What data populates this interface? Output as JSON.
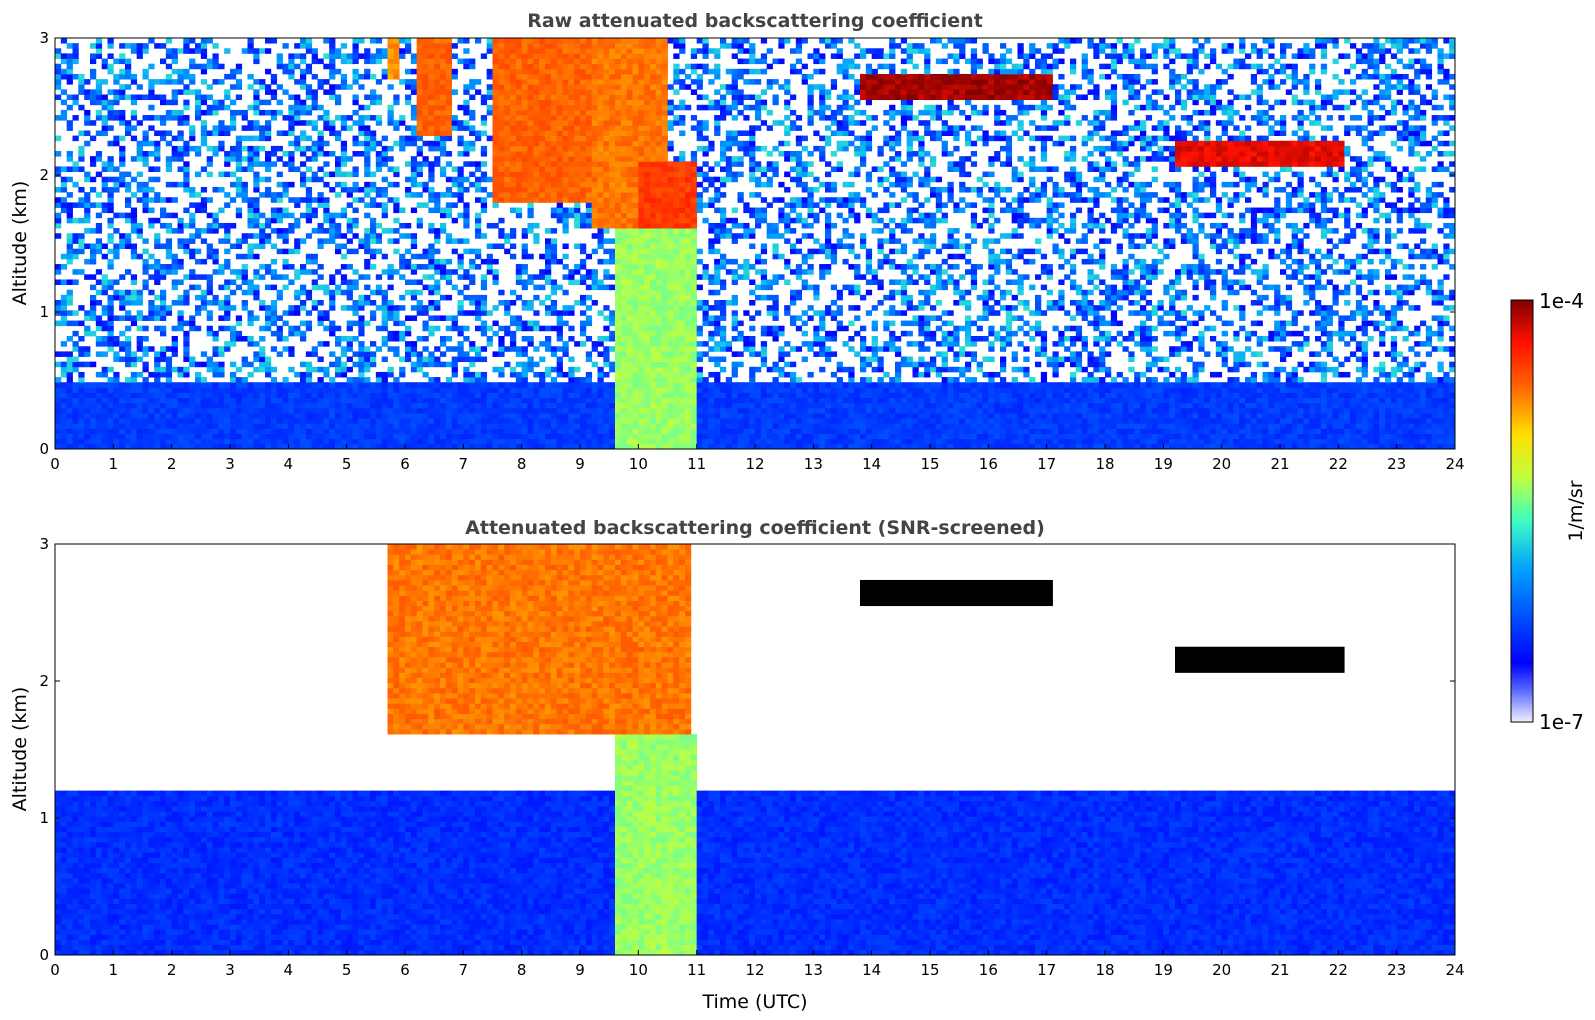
{
  "chart_data": [
    {
      "type": "heatmap",
      "title": "Raw attenuated backscattering coefficient",
      "xlabel": "",
      "ylabel": "Altitude (km)",
      "xlim": [
        0,
        24
      ],
      "ylim": [
        0,
        3
      ],
      "x_ticks": [
        "0",
        "1",
        "2",
        "3",
        "4",
        "5",
        "6",
        "7",
        "8",
        "9",
        "10",
        "11",
        "12",
        "13",
        "14",
        "15",
        "16",
        "17",
        "18",
        "19",
        "20",
        "21",
        "22",
        "23",
        "24"
      ],
      "y_ticks": [
        "0",
        "1",
        "2",
        "3"
      ],
      "screened": false,
      "features": [
        {
          "kind": "boundary-layer aerosol",
          "x": [
            0,
            24
          ],
          "y": [
            0,
            0.5
          ],
          "level": 0.22
        },
        {
          "kind": "falling precipitation streak",
          "x": [
            5.7,
            5.85
          ],
          "y": [
            2.7,
            3.0
          ],
          "level": 0.75
        },
        {
          "kind": "falling precipitation streak",
          "x": [
            6.2,
            6.8
          ],
          "y": [
            2.3,
            3.0
          ],
          "level": 0.8
        },
        {
          "kind": "falling precipitation streak",
          "x": [
            7.5,
            9.2
          ],
          "y": [
            1.8,
            3.0
          ],
          "level": 0.8
        },
        {
          "kind": "falling precipitation streak",
          "x": [
            9.2,
            10.5
          ],
          "y": [
            1.6,
            3.0
          ],
          "level": 0.78
        },
        {
          "kind": "precipitation shaft",
          "x": [
            9.6,
            11.0
          ],
          "y": [
            0,
            1.6
          ],
          "level": 0.55
        },
        {
          "kind": "cloud layer",
          "x": [
            10.0,
            11.0
          ],
          "y": [
            1.6,
            2.1
          ],
          "level": 0.85
        },
        {
          "kind": "cloud layer",
          "x": [
            13.8,
            17.1
          ],
          "y": [
            2.55,
            2.75
          ],
          "level": 0.97
        },
        {
          "kind": "cloud layer",
          "x": [
            19.2,
            22.1
          ],
          "y": [
            2.05,
            2.25
          ],
          "level": 0.92
        }
      ]
    },
    {
      "type": "heatmap",
      "title": "Attenuated backscattering coefficient (SNR-screened)",
      "xlabel": "Time (UTC)",
      "ylabel": "Altitude (km)",
      "xlim": [
        0,
        24
      ],
      "ylim": [
        0,
        3
      ],
      "x_ticks": [
        "0",
        "1",
        "2",
        "3",
        "4",
        "5",
        "6",
        "7",
        "8",
        "9",
        "10",
        "11",
        "12",
        "13",
        "14",
        "15",
        "16",
        "17",
        "18",
        "19",
        "20",
        "21",
        "22",
        "23",
        "24"
      ],
      "y_ticks": [
        "0",
        "1",
        "2",
        "3"
      ],
      "screened": true,
      "features": [
        {
          "kind": "boundary-layer aerosol",
          "x": [
            0,
            24
          ],
          "y": [
            0,
            1.2
          ],
          "level": 0.2
        },
        {
          "kind": "falling precipitation streak",
          "x": [
            5.7,
            10.9
          ],
          "y": [
            1.6,
            3.0
          ],
          "level": 0.78
        },
        {
          "kind": "precipitation shaft",
          "x": [
            9.6,
            11.0
          ],
          "y": [
            0,
            1.6
          ],
          "level": 0.55
        },
        {
          "kind": "cloud layer (saturated)",
          "x": [
            13.8,
            17.1
          ],
          "y": [
            2.55,
            2.75
          ],
          "level": 1.0
        },
        {
          "kind": "cloud layer (saturated)",
          "x": [
            19.2,
            22.1
          ],
          "y": [
            2.05,
            2.25
          ],
          "level": 1.0
        }
      ]
    }
  ],
  "colorbar": {
    "max_label": "1e-4",
    "min_label": "1e-7",
    "unit_label": "1/m/sr",
    "colormap": "jet",
    "scale": "log"
  }
}
